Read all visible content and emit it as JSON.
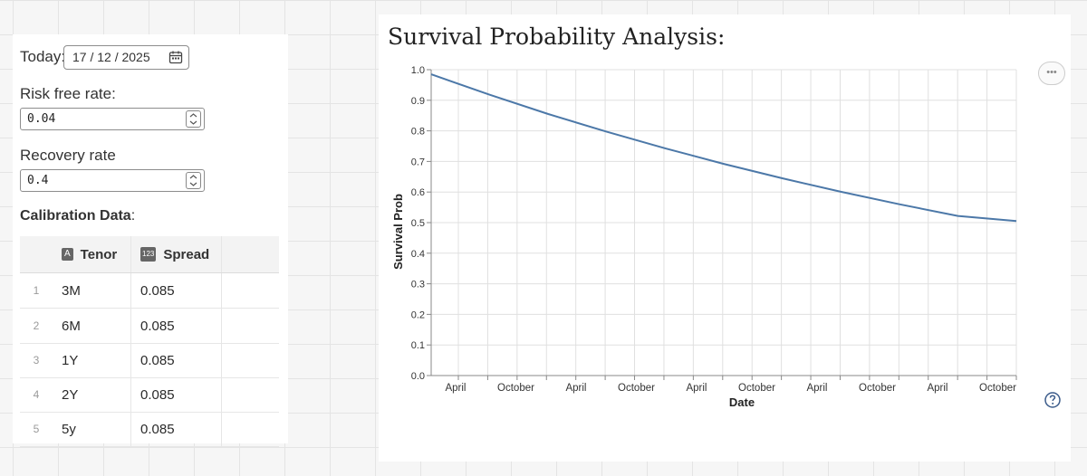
{
  "inputs": {
    "today_label": "Today:",
    "today_value": "17 / 12 / 2025",
    "risk_free_label": "Risk free rate:",
    "risk_free_value": "0.04",
    "recovery_label": "Recovery rate",
    "recovery_value": "0.4"
  },
  "calibration": {
    "title_bold": "Calibration Data",
    "title_colon": ":",
    "columns": [
      {
        "badge": "A",
        "label": "Tenor"
      },
      {
        "badge": "123",
        "label": "Spread"
      }
    ],
    "rows": [
      {
        "index": "1",
        "tenor": "3M",
        "spread": "0.085"
      },
      {
        "index": "2",
        "tenor": "6M",
        "spread": "0.085"
      },
      {
        "index": "3",
        "tenor": "1Y",
        "spread": "0.085"
      },
      {
        "index": "4",
        "tenor": "2Y",
        "spread": "0.085"
      },
      {
        "index": "5",
        "tenor": "5y",
        "spread": "0.085"
      }
    ]
  },
  "chart_title": "Survival Probability Analysis:",
  "icons": {
    "date": "calendar-icon",
    "spinner": "spinner-arrows-icon",
    "menu": "more-dots-icon",
    "help": "help-circle-icon"
  },
  "colors": {
    "line": "#4c78a8",
    "grid": "#e0e0e0",
    "axis": "#888888"
  },
  "chart_data": {
    "type": "line",
    "title": "Survival Probability Analysis:",
    "xlabel": "Date",
    "ylabel": "Survival Prob",
    "ylim": [
      0,
      1
    ],
    "yticks": [
      "0.0",
      "0.1",
      "0.2",
      "0.3",
      "0.4",
      "0.5",
      "0.6",
      "0.7",
      "0.8",
      "0.9",
      "1.0"
    ],
    "xticks": [
      "April",
      "October",
      "April",
      "October",
      "April",
      "October",
      "April",
      "October",
      "April",
      "October"
    ],
    "x_range_years": [
      0,
      5
    ],
    "series": [
      {
        "name": "Survival Prob",
        "x_years": [
          0,
          0.5,
          1,
          1.5,
          2,
          2.5,
          3,
          3.5,
          4,
          4.5,
          5
        ],
        "values": [
          0.985,
          0.918,
          0.855,
          0.797,
          0.743,
          0.692,
          0.645,
          0.601,
          0.56,
          0.522,
          0.505
        ]
      }
    ]
  }
}
